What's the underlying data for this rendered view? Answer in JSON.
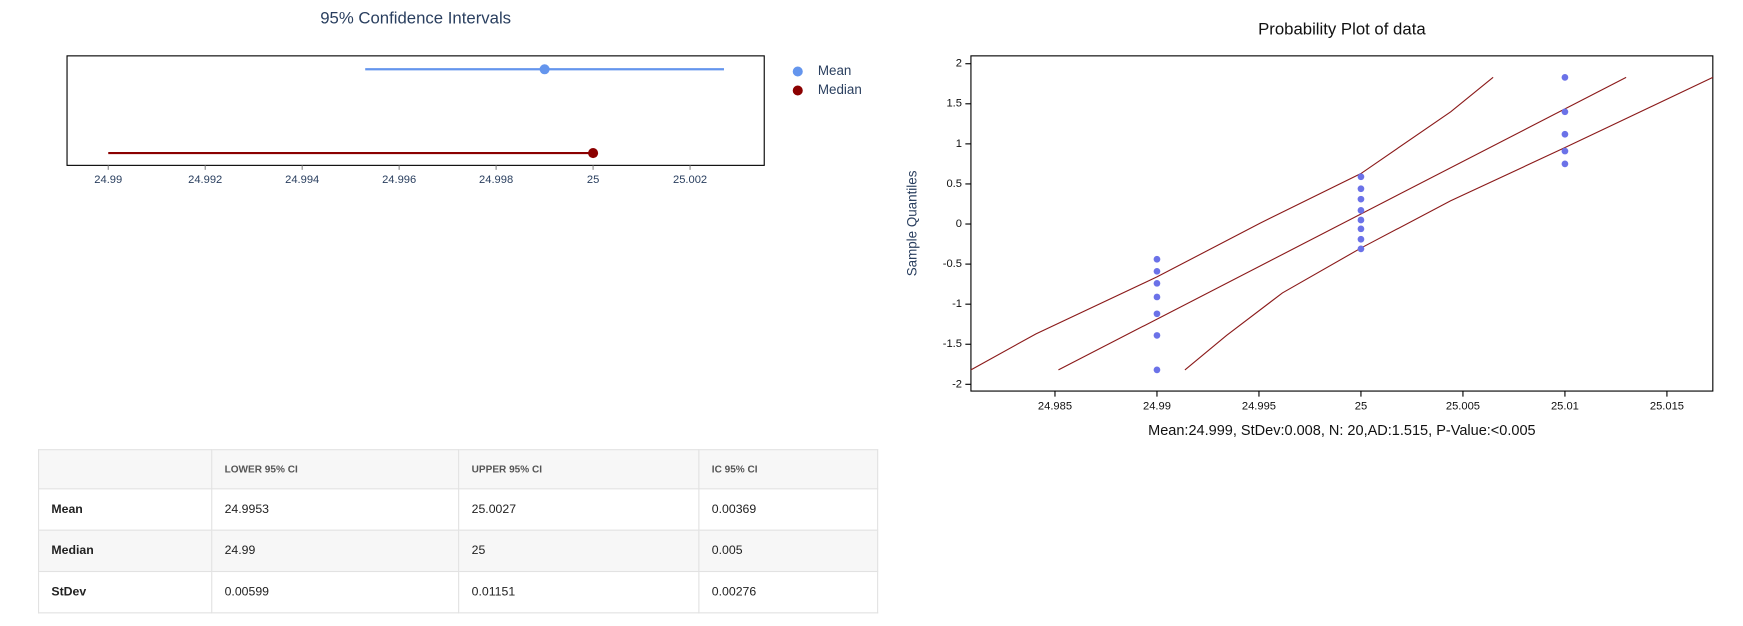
{
  "chart_data": [
    {
      "type": "interval",
      "title": "95% Confidence Intervals",
      "xlim": [
        24.98915,
        25.00353
      ],
      "xticks": [
        24.99,
        24.992,
        24.994,
        24.996,
        24.998,
        25,
        25.002
      ],
      "legend": "right",
      "series": [
        {
          "name": "Mean",
          "color": "#6495ed",
          "lower": 24.9953,
          "upper": 25.0027,
          "values": 24.999
        },
        {
          "name": "Median",
          "color": "#8b0000",
          "lower": 24.99,
          "upper": 25,
          "values": 25
        }
      ]
    },
    {
      "type": "scatter",
      "title": "Probability Plot of data",
      "ylabel": "Sample Quantiles",
      "annotation": "Mean:24.999, StDev:0.008, N: 20,AD:1.515, P-Value:<0.005",
      "xlim": [
        24.98088,
        25.01725
      ],
      "ylim": [
        -2.084,
        2.098
      ],
      "xticks": [
        24.985,
        24.99,
        24.995,
        25,
        25.005,
        25.01,
        25.015
      ],
      "yticks": [
        2,
        1.5,
        1,
        0.5,
        0,
        -0.5,
        -1,
        -1.5,
        -2
      ],
      "points": {
        "color": "#6b72e8",
        "x": [
          24.99,
          24.99,
          24.99,
          24.99,
          24.99,
          24.99,
          24.99,
          25,
          25,
          25,
          25,
          25,
          25,
          25,
          25,
          25.01,
          25.01,
          25.01,
          25.01,
          25.01
        ],
        "y": [
          -0.44,
          -0.59,
          -0.74,
          -0.91,
          -1.12,
          -1.39,
          -1.82,
          0.59,
          0.44,
          0.31,
          0.17,
          0.05,
          -0.06,
          -0.19,
          -0.31,
          1.83,
          1.4,
          1.12,
          0.91,
          0.75
        ]
      },
      "lines": [
        {
          "color": "#8b1a1a",
          "x": [
            24.98088,
            24.98407,
            24.99,
            24.99505,
            25,
            25.0044,
            25.00648
          ],
          "y": [
            -1.82,
            -1.37,
            -0.66,
            0.01,
            0.63,
            1.4,
            1.83
          ]
        },
        {
          "color": "#8b1a1a",
          "x": [
            24.98517,
            25.013
          ],
          "y": [
            -1.82,
            1.83
          ]
        },
        {
          "color": "#8b1a1a",
          "x": [
            24.99137,
            24.99341,
            24.99615,
            25,
            25.0044,
            25.00989,
            25.01725
          ],
          "y": [
            -1.82,
            -1.39,
            -0.86,
            -0.3,
            0.29,
            0.94,
            1.83
          ]
        }
      ]
    }
  ],
  "table": {
    "columns": [
      "LOWER 95% CI",
      "UPPER 95% CI",
      "IC 95% CI"
    ],
    "rows": [
      [
        "Mean",
        "24.9953",
        "25.0027",
        "0.00369"
      ],
      [
        "Median",
        "24.99",
        "25",
        "0.005"
      ],
      [
        "StDev",
        "0.00599",
        "0.01151",
        "0.00276"
      ]
    ]
  }
}
